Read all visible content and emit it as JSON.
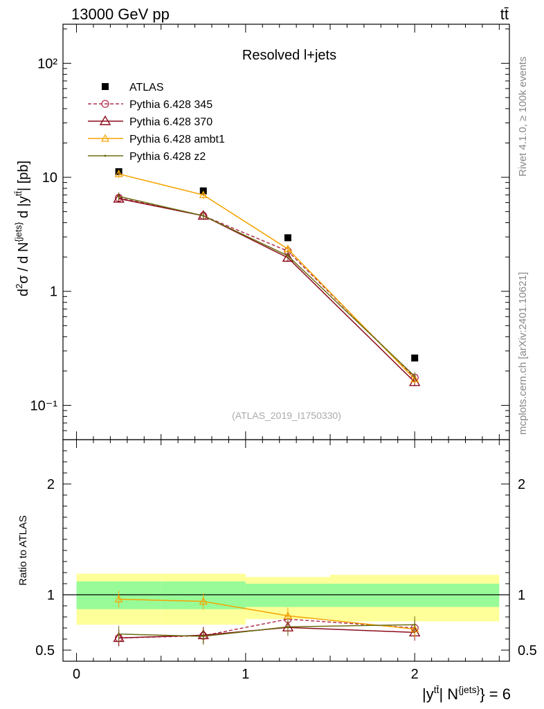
{
  "header": {
    "left": "13000 GeV pp",
    "right": "tt̄"
  },
  "side_text": {
    "rivet": "Rivet 4.1.0, ≥ 100k events",
    "mcplots": "mcplots.cern.ch [arXiv:2401.10621]"
  },
  "colors": {
    "atlas": "#000000",
    "p345": "#b0304e",
    "p370": "#8b0a1a",
    "ambt1": "#f5a300",
    "z2": "#6b6b10",
    "band_inner": "#98fb98",
    "band_outer": "#ffff99"
  },
  "chart_data": {
    "type": "line",
    "title": "Resolved l+jets",
    "watermark": "(ATLAS_2019_I1750330)",
    "ylabel": "d²σ / d N^{jets} d |y^{tt̄}| [pb]",
    "xlabel": "|y^{tt̄}| N^{jets} = 6",
    "xlim": [
      -0.08,
      2.56
    ],
    "main_ylim_log": [
      0.05,
      220
    ],
    "main_yticks": [
      "10⁻¹",
      "1",
      "10",
      "10²"
    ],
    "x_centers": [
      0.25,
      0.75,
      1.25,
      2.0
    ],
    "x_edges": [
      0.0,
      0.5,
      1.0,
      1.5,
      2.5
    ],
    "series": [
      {
        "name": "ATLAS",
        "key": "atlas",
        "values": [
          11.2,
          7.6,
          2.95,
          0.26
        ]
      },
      {
        "name": "Pythia 6.428 345",
        "key": "p345",
        "values": [
          6.6,
          4.6,
          2.25,
          0.175
        ],
        "ratio": [
          0.61,
          0.63,
          0.78,
          0.7
        ]
      },
      {
        "name": "Pythia 6.428 370",
        "key": "p370",
        "values": [
          6.5,
          4.6,
          1.97,
          0.16
        ],
        "ratio": [
          0.61,
          0.635,
          0.705,
          0.66
        ]
      },
      {
        "name": "Pythia 6.428 ambt1",
        "key": "ambt1",
        "values": [
          10.7,
          7.0,
          2.35,
          0.17
        ],
        "ratio": [
          0.96,
          0.94,
          0.81,
          0.69
        ]
      },
      {
        "name": "Pythia 6.428 z2",
        "key": "z2",
        "values": [
          6.8,
          4.6,
          2.05,
          0.18
        ],
        "ratio": [
          0.645,
          0.625,
          0.71,
          0.73
        ]
      }
    ],
    "ratio_panel": {
      "ylabel": "Ratio to ATLAS",
      "ylim": [
        0.4,
        2.4
      ],
      "yticks": [
        "0.5",
        "1",
        "2"
      ],
      "xticks": [
        "0",
        "1",
        "2"
      ],
      "band_inner": [
        [
          0.87,
          1.12
        ],
        [
          0.87,
          1.12
        ],
        [
          0.89,
          1.1
        ],
        [
          0.89,
          1.1
        ]
      ],
      "band_outer": [
        [
          0.73,
          1.19
        ],
        [
          0.73,
          1.19
        ],
        [
          0.78,
          1.16
        ],
        [
          0.76,
          1.18
        ]
      ]
    }
  }
}
